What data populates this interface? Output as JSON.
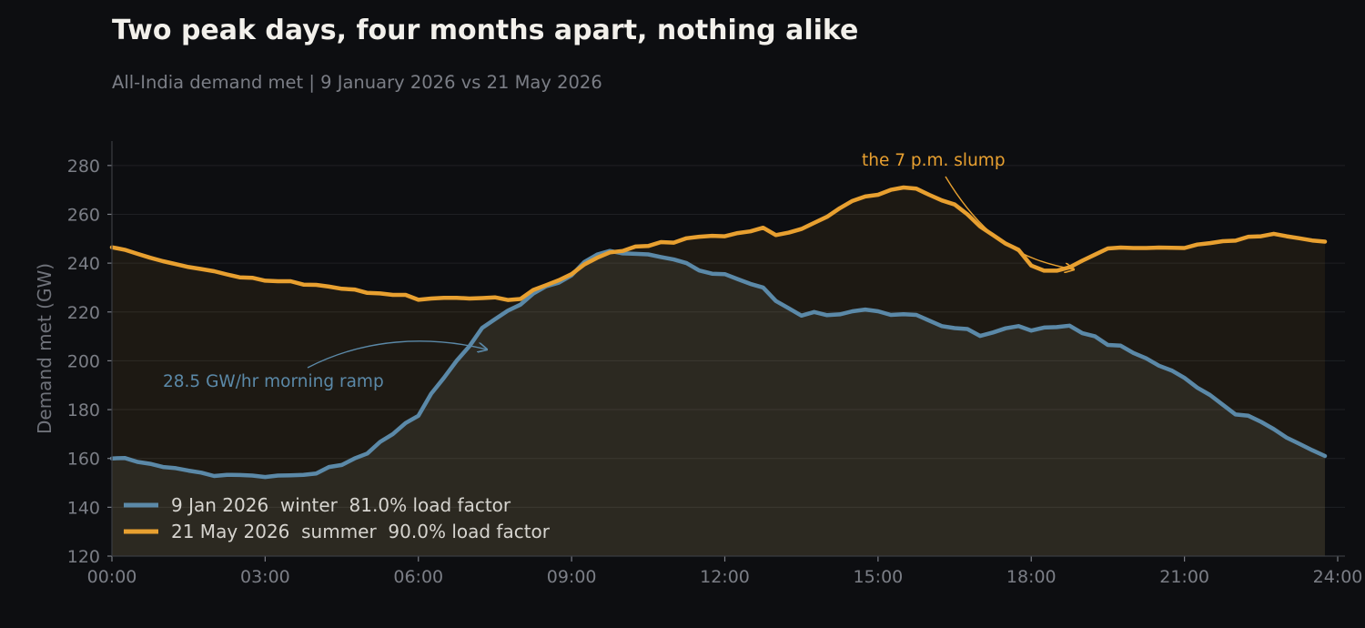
{
  "header": {
    "title": "Two peak days, four months apart, nothing alike",
    "subtitle": "All-India demand met  |  9 January 2026 vs 21 May 2026"
  },
  "colors": {
    "background": "#0d0e11",
    "winter": "#5b89a8",
    "summer": "#e8a030",
    "grid": "#1f2024",
    "tick_text": "#7b7e86"
  },
  "chart_data": {
    "type": "line",
    "title": "Two peak days, four months apart, nothing alike",
    "subtitle": "All-India demand met  |  9 January 2026 vs 21 May 2026",
    "xlabel": "",
    "ylabel": "Demand met (GW)",
    "xlim": [
      0,
      24
    ],
    "ylim": [
      120,
      290
    ],
    "grid": true,
    "legend_position": "bottom-left",
    "x_ticks": [
      {
        "value": 0,
        "label": "00:00"
      },
      {
        "value": 3,
        "label": "03:00"
      },
      {
        "value": 6,
        "label": "06:00"
      },
      {
        "value": 9,
        "label": "09:00"
      },
      {
        "value": 12,
        "label": "12:00"
      },
      {
        "value": 15,
        "label": "15:00"
      },
      {
        "value": 18,
        "label": "18:00"
      },
      {
        "value": 21,
        "label": "21:00"
      },
      {
        "value": 24,
        "label": "24:00"
      }
    ],
    "y_ticks": [
      120,
      140,
      160,
      180,
      200,
      220,
      240,
      260,
      280
    ],
    "x_step_hours": 0.25,
    "series": [
      {
        "name": "9 Jan 2026  winter  81.0% load factor",
        "color": "#5b89a8",
        "values": [
          160.0,
          160.2,
          158.6,
          157.8,
          156.5,
          156.0,
          155.0,
          154.2,
          152.8,
          153.3,
          153.2,
          153.0,
          152.4,
          153.0,
          153.1,
          153.3,
          153.8,
          156.5,
          157.3,
          160.0,
          162.0,
          166.8,
          170.0,
          174.5,
          177.5,
          186.5,
          193.0,
          200.0,
          206.0,
          213.5,
          217.0,
          220.5,
          223.0,
          227.5,
          230.5,
          232.0,
          235.0,
          240.5,
          243.5,
          245.0,
          244.0,
          243.8,
          243.6,
          242.5,
          241.5,
          240.0,
          237.0,
          235.7,
          235.5,
          233.5,
          231.5,
          230.0,
          224.5,
          221.5,
          218.5,
          220.0,
          218.7,
          219.0,
          220.3,
          221.0,
          220.3,
          218.8,
          219.1,
          218.8,
          216.5,
          214.2,
          213.4,
          213.0,
          210.2,
          211.6,
          213.3,
          214.2,
          212.4,
          213.6,
          213.8,
          214.4,
          211.3,
          210.0,
          206.5,
          206.2,
          203.2,
          201.0,
          198.0,
          196.0,
          193.0,
          189.0,
          186.0,
          182.0,
          178.0,
          177.5,
          175.0,
          172.0,
          168.5,
          166.0,
          163.4,
          161.0
        ]
      },
      {
        "name": "21 May 2026  summer  90.0% load factor",
        "color": "#e8a030",
        "values": [
          246.5,
          245.5,
          243.8,
          242.2,
          240.8,
          239.6,
          238.4,
          237.6,
          236.7,
          235.4,
          234.2,
          234.0,
          232.8,
          232.6,
          232.6,
          231.2,
          231.1,
          230.4,
          229.5,
          229.2,
          227.8,
          227.6,
          227.0,
          227.0,
          225.0,
          225.5,
          225.8,
          225.8,
          225.5,
          225.7,
          226.0,
          224.9,
          225.3,
          229.0,
          231.0,
          233.0,
          235.5,
          239.5,
          242.2,
          244.4,
          245.0,
          246.8,
          247.0,
          248.6,
          248.4,
          250.2,
          250.8,
          251.2,
          251.0,
          252.3,
          253.0,
          254.5,
          251.5,
          252.5,
          254.0,
          256.5,
          259.0,
          262.5,
          265.5,
          267.3,
          268.0,
          270.0,
          271.0,
          270.5,
          268.0,
          265.7,
          264.0,
          260.0,
          255.0,
          251.5,
          248.0,
          245.5,
          239.0,
          236.9,
          236.9,
          238.3,
          241.0,
          243.5,
          246.0,
          246.4,
          246.2,
          246.2,
          246.4,
          246.3,
          246.2,
          247.6,
          248.2,
          249.0,
          249.2,
          250.8,
          251.0,
          252.0,
          251.0,
          250.2,
          249.3,
          248.8
        ]
      }
    ],
    "annotations": [
      {
        "text": "the 7 p.m. slump",
        "x": 18.7,
        "y": 238,
        "color": "#e8a030"
      },
      {
        "text": "28.5 GW/hr morning ramp",
        "x": 7.2,
        "y": 209,
        "color": "#5b89a8"
      }
    ]
  }
}
